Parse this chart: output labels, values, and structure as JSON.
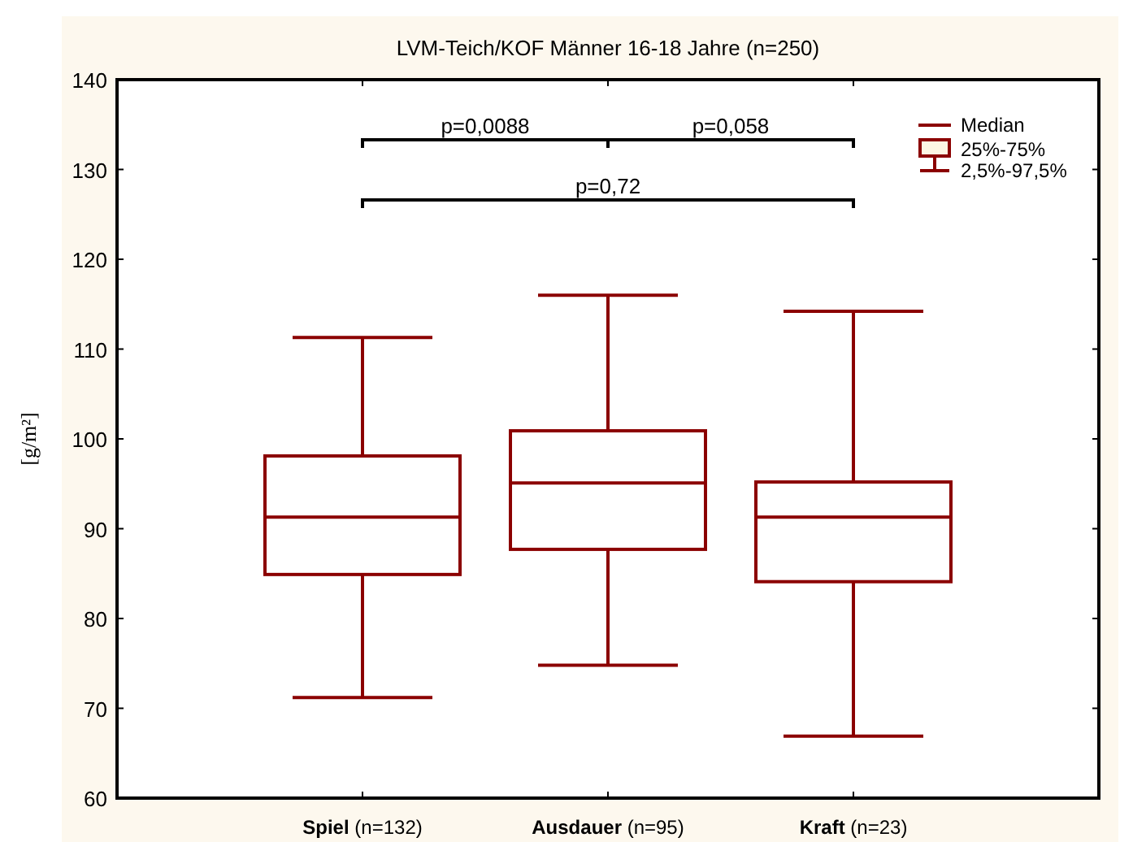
{
  "chart_data": {
    "type": "box",
    "title": "LVM-Teich/KOF Männer 16-18 Jahre (n=250)",
    "ylabel": "[g/m²]",
    "categories": [
      "Spiel (n=132)",
      "Ausdauer (n=95)",
      "Kraft (n=23)"
    ],
    "color": "#8b0000",
    "boxes": [
      {
        "low": 71.2,
        "q1": 84.9,
        "median": 91.3,
        "q3": 98.1,
        "high": 111.3
      },
      {
        "low": 74.8,
        "q1": 87.7,
        "median": 95.1,
        "q3": 100.9,
        "high": 116
      },
      {
        "low": 66.9,
        "q1": 84.1,
        "median": 91.3,
        "q3": 95.2,
        "high": 114.2
      }
    ],
    "ylim": [
      60,
      140
    ],
    "yticks": [
      60,
      70,
      80,
      90,
      100,
      110,
      120,
      130,
      140
    ],
    "grid": false,
    "annotations": [
      "p=0,0088",
      "p=0,058",
      "p=0,72",
      "Median",
      "25%-75%",
      "2,5%-97,5%"
    ]
  }
}
